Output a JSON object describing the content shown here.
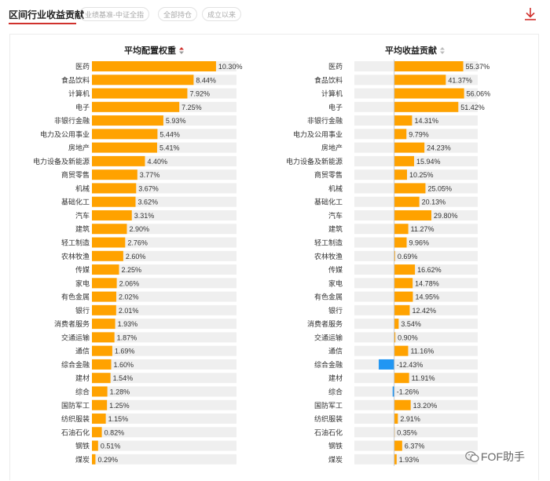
{
  "header": {
    "title": "区间行业收益贡献",
    "filters": [
      "业绩基准-中证全指",
      "全部持仓",
      "成立以来"
    ]
  },
  "watermark": {
    "text": "FOF助手"
  },
  "colors": {
    "positive": "#ffa200",
    "negative": "#2196f3",
    "accent": "#d0312d",
    "track": "#efefef"
  },
  "icons": {
    "download": "download-icon",
    "sort_active": "sort-icon",
    "sort_inactive": "sort-icon",
    "watermark": "wechat-icon"
  },
  "chart_data": [
    {
      "type": "bar",
      "title": "平均配置权重",
      "orientation": "horizontal",
      "categories": [
        "医药",
        "食品饮料",
        "计算机",
        "电子",
        "非银行金融",
        "电力及公用事业",
        "房地产",
        "电力设备及新能源",
        "商贸零售",
        "机械",
        "基础化工",
        "汽车",
        "建筑",
        "轻工制造",
        "农林牧渔",
        "传媒",
        "家电",
        "有色金属",
        "银行",
        "消费者服务",
        "交通运输",
        "通信",
        "综合金融",
        "建材",
        "综合",
        "国防军工",
        "纺织服装",
        "石油石化",
        "钢铁",
        "煤炭"
      ],
      "values": [
        10.3,
        8.44,
        7.92,
        7.25,
        5.93,
        5.44,
        5.41,
        4.4,
        3.77,
        3.67,
        3.62,
        3.31,
        2.9,
        2.76,
        2.6,
        2.25,
        2.06,
        2.02,
        2.01,
        1.93,
        1.87,
        1.69,
        1.6,
        1.54,
        1.28,
        1.25,
        1.15,
        0.82,
        0.51,
        0.29
      ],
      "labels": [
        "10.30%",
        "8.44%",
        "7.92%",
        "7.25%",
        "5.93%",
        "5.44%",
        "5.41%",
        "4.40%",
        "3.77%",
        "3.67%",
        "3.62%",
        "3.31%",
        "2.90%",
        "2.76%",
        "2.60%",
        "2.25%",
        "2.06%",
        "2.02%",
        "2.01%",
        "1.93%",
        "1.87%",
        "1.69%",
        "1.60%",
        "1.54%",
        "1.28%",
        "1.25%",
        "1.15%",
        "0.82%",
        "0.51%",
        "0.29%"
      ],
      "xlim": [
        0,
        12
      ],
      "sorted": true
    },
    {
      "type": "bar",
      "title": "平均收益贡献",
      "orientation": "horizontal",
      "categories": [
        "医药",
        "食品饮料",
        "计算机",
        "电子",
        "非银行金融",
        "电力及公用事业",
        "房地产",
        "电力设备及新能源",
        "商贸零售",
        "机械",
        "基础化工",
        "汽车",
        "建筑",
        "轻工制造",
        "农林牧渔",
        "传媒",
        "家电",
        "有色金属",
        "银行",
        "消费者服务",
        "交通运输",
        "通信",
        "综合金融",
        "建材",
        "综合",
        "国防军工",
        "纺织服装",
        "石油石化",
        "钢铁",
        "煤炭"
      ],
      "values": [
        55.37,
        41.37,
        56.06,
        51.42,
        14.31,
        9.79,
        24.23,
        15.94,
        10.25,
        25.05,
        20.13,
        29.8,
        11.27,
        9.96,
        0.69,
        16.62,
        14.78,
        14.95,
        12.42,
        3.54,
        0.9,
        11.16,
        -12.43,
        11.91,
        -1.26,
        13.2,
        2.91,
        0.35,
        6.37,
        1.93
      ],
      "labels": [
        "55.37%",
        "41.37%",
        "56.06%",
        "51.42%",
        "14.31%",
        "9.79%",
        "24.23%",
        "15.94%",
        "10.25%",
        "25.05%",
        "20.13%",
        "29.80%",
        "11.27%",
        "9.96%",
        "0.69%",
        "16.62%",
        "14.78%",
        "14.95%",
        "12.42%",
        "3.54%",
        "0.90%",
        "11.16%",
        "-12.43%",
        "11.91%",
        "-1.26%",
        "13.20%",
        "2.91%",
        "0.35%",
        "6.37%",
        "1.93%"
      ],
      "xlim": [
        -32,
        67
      ],
      "sorted": false
    }
  ]
}
